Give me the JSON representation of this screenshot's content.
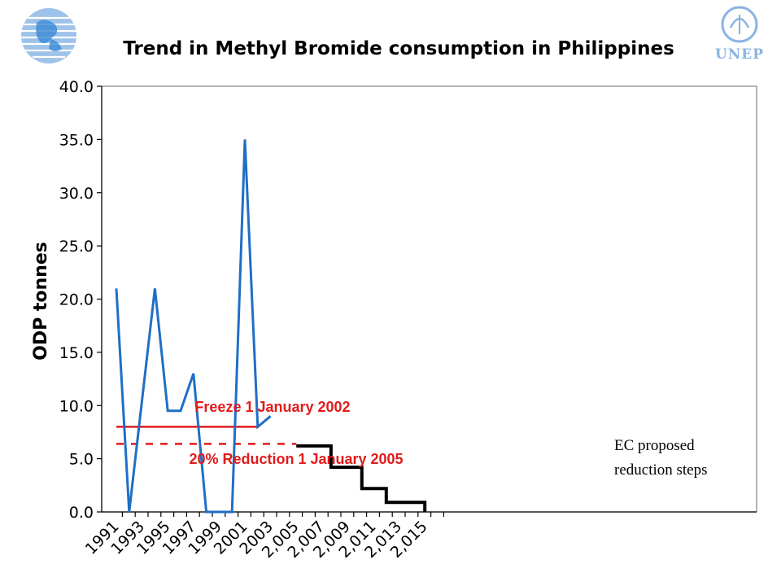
{
  "chart_data": {
    "type": "line",
    "title": "Trend in Methyl Bromide consumption in Philippines",
    "ylabel": "ODP tonnes",
    "xlabel": "",
    "ylim": [
      0,
      40
    ],
    "xlim": [
      1991,
      2015
    ],
    "y_ticks": [
      "0.0",
      "5.0",
      "10.0",
      "15.0",
      "20.0",
      "25.0",
      "30.0",
      "35.0",
      "40.0"
    ],
    "x_ticks": [
      {
        "value": 1991,
        "label": "1991"
      },
      {
        "value": 1993,
        "label": "1993"
      },
      {
        "value": 1995,
        "label": "1995"
      },
      {
        "value": 1997,
        "label": "1997"
      },
      {
        "value": 1999,
        "label": "1999"
      },
      {
        "value": 2001,
        "label": "2001"
      },
      {
        "value": 2003,
        "label": "2003"
      },
      {
        "value": 2005,
        "label": "2,005"
      },
      {
        "value": 2007,
        "label": "2,007"
      },
      {
        "value": 2009,
        "label": "2,009"
      },
      {
        "value": 2011,
        "label": "2,011"
      },
      {
        "value": 2013,
        "label": "2,013"
      },
      {
        "value": 2015,
        "label": "2,015"
      }
    ],
    "grid": false,
    "series": [
      {
        "color": "#1f6fc6",
        "x": [
          1991,
          1992,
          1993,
          1994,
          1995,
          1996,
          1997,
          1998,
          1999,
          2000,
          2001,
          2002,
          2003
        ],
        "y": [
          21.0,
          0.0,
          10.5,
          21.0,
          9.5,
          9.5,
          13.0,
          0.0,
          0.0,
          0.0,
          35.0,
          8.0,
          9.0
        ]
      },
      {
        "color": "#000000",
        "style": "step",
        "x": [
          2005,
          2007.7,
          2007.7,
          2010.1,
          2010.1,
          2012,
          2012,
          2015,
          2015
        ],
        "y": [
          6.2,
          6.2,
          4.2,
          4.2,
          2.2,
          2.2,
          0.9,
          0.9,
          0.0
        ]
      }
    ],
    "reference_lines": [
      {
        "label": "Freeze 1 January 2002",
        "y": 8.0,
        "x_start": 1991,
        "x_end": 2002,
        "style": "solid",
        "color": "#e01b1b"
      },
      {
        "label": "20% Reduction 1 January 2005",
        "y": 6.4,
        "x_start": 1991,
        "x_end": 2005,
        "style": "dashed",
        "color": "#e01b1b"
      }
    ],
    "annotations": [
      "EC proposed",
      "reduction steps"
    ]
  },
  "colors": {
    "blue_line": "#1f6fc6",
    "red": "#e01b1b",
    "black": "#000000"
  },
  "logos": {
    "left": "un-globe-icon",
    "right": "unep-logo",
    "right_text": "UNEP"
  }
}
